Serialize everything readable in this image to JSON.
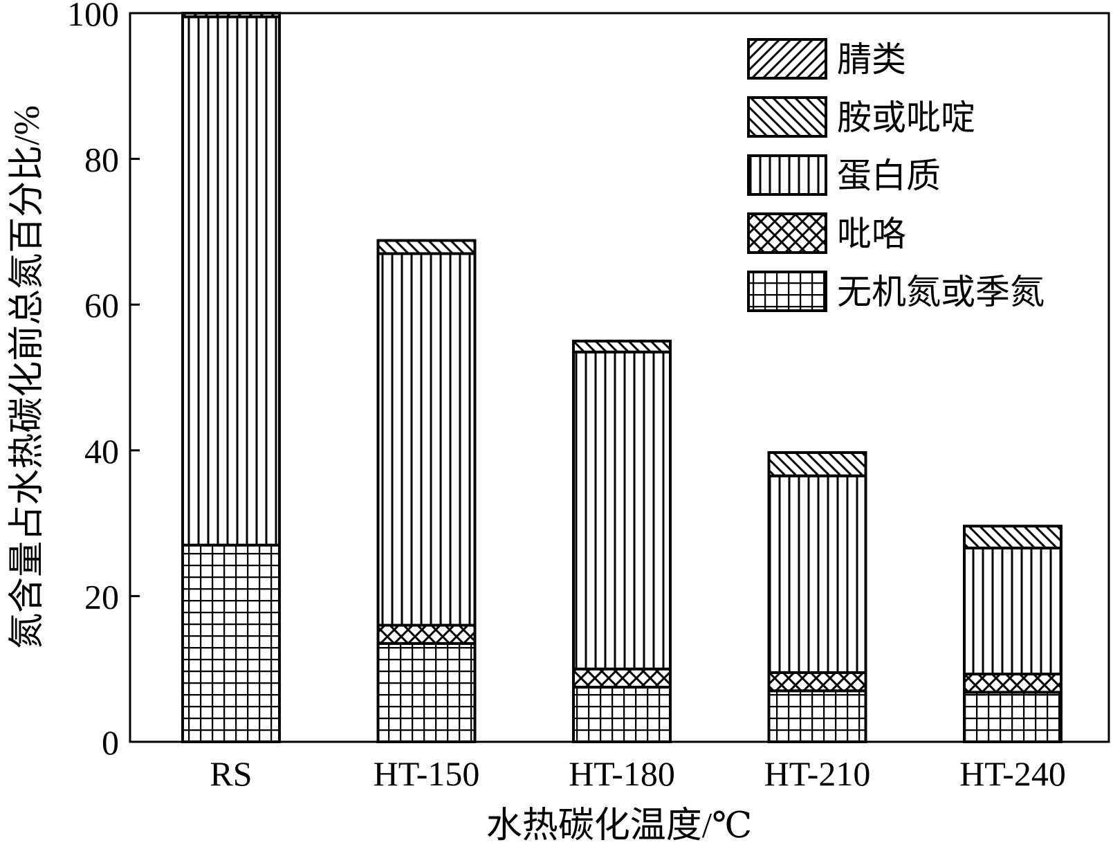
{
  "chart_data": {
    "type": "bar",
    "stacked": true,
    "title": "",
    "xlabel": "水热碳化温度/℃",
    "ylabel": "氮含量占水热碳化前总氮百分比/%",
    "ylim": [
      0,
      100
    ],
    "yticks": [
      0,
      20,
      40,
      60,
      80,
      100
    ],
    "grid": false,
    "legend_position": "top-right",
    "categories": [
      "RS",
      "HT-150",
      "HT-180",
      "HT-210",
      "HT-240"
    ],
    "series": [
      {
        "name": "无机氮或季氮",
        "pattern": "grid",
        "values": [
          27.0,
          13.5,
          7.5,
          7.0,
          6.8
        ]
      },
      {
        "name": "吡咯",
        "pattern": "cross",
        "values": [
          0.0,
          2.5,
          2.5,
          2.5,
          2.5
        ]
      },
      {
        "name": "蛋白质",
        "pattern": "vertical",
        "values": [
          72.5,
          51.0,
          43.5,
          27.0,
          17.3
        ]
      },
      {
        "name": "胺或吡啶",
        "pattern": "backward",
        "values": [
          0.0,
          1.8,
          1.5,
          3.2,
          3.0
        ]
      },
      {
        "name": "腈类",
        "pattern": "forward",
        "values": [
          0.5,
          0.0,
          0.0,
          0.0,
          0.0
        ]
      }
    ],
    "legend_order": [
      "腈类",
      "胺或吡啶",
      "蛋白质",
      "吡咯",
      "无机氮或季氮"
    ],
    "colors": {
      "line": "#000000",
      "background": "#ffffff"
    }
  }
}
